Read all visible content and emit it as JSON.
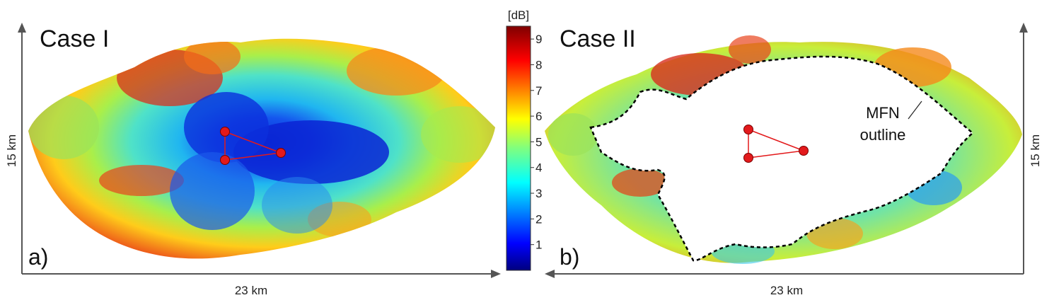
{
  "panel_a": {
    "case_label": "Case I",
    "panel_letter": "a)",
    "x_dimension": "23 km",
    "y_dimension": "15 km"
  },
  "panel_b": {
    "case_label": "Case II",
    "panel_letter": "b)",
    "x_dimension": "23 km",
    "y_dimension": "15 km",
    "annotation_line1": "MFN",
    "annotation_line2": "outline"
  },
  "colorbar": {
    "unit": "[dB]",
    "ticks": [
      "9",
      "8",
      "7",
      "6",
      "5",
      "4",
      "3",
      "2",
      "1"
    ],
    "range": [
      0,
      9.5
    ],
    "colormap": "jet"
  },
  "colors": {
    "axis": "#555555",
    "transmitter": "#e31a1c",
    "link_line": "#e31a1c",
    "outline": "#000000"
  }
}
